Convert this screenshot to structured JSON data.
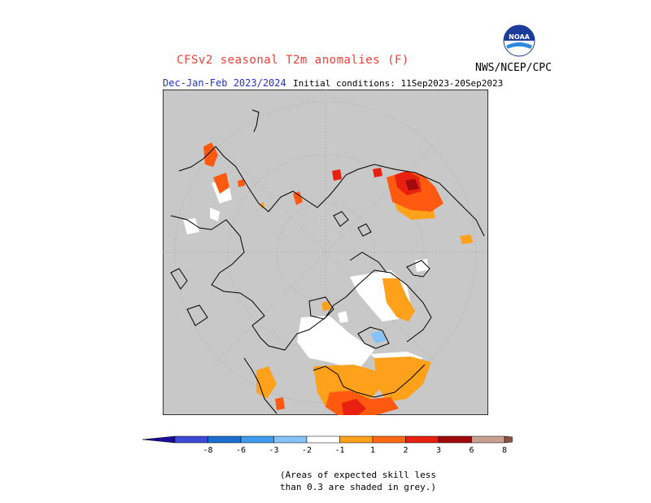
{
  "title": "CFSv2 seasonal T2m anomalies (F)",
  "org": "NWS/NCEP/CPC",
  "logo_text": "NOAA",
  "season": "Dec-Jan-Feb 2023/2024",
  "initial_conditions": "Initial conditions: 11Sep2023-20Sep2023",
  "note_line1": "(Areas of expected skill less",
  "note_line2": "than 0.3 are shaded in grey.)",
  "colorbar": {
    "colors": [
      "#1a0d99",
      "#3d4ad6",
      "#1c6ed0",
      "#3d9bf0",
      "#85c2f7",
      "#ffffff",
      "#ffa11a",
      "#ff6a10",
      "#e82010",
      "#a00a0a",
      "#c8a090",
      "#8a5040"
    ],
    "labels": [
      "-8",
      "-6",
      "-3",
      "-2",
      "-1",
      "1",
      "2",
      "3",
      "6",
      "8"
    ]
  },
  "legend_colors": {
    "grey": "#c8c8c8",
    "white": "#ffffff",
    "orange": "#ffa11a",
    "red_orange": "#ff5a10",
    "red": "#e82010",
    "dark_red": "#a00a0a",
    "light_blue": "#85c2f7"
  }
}
